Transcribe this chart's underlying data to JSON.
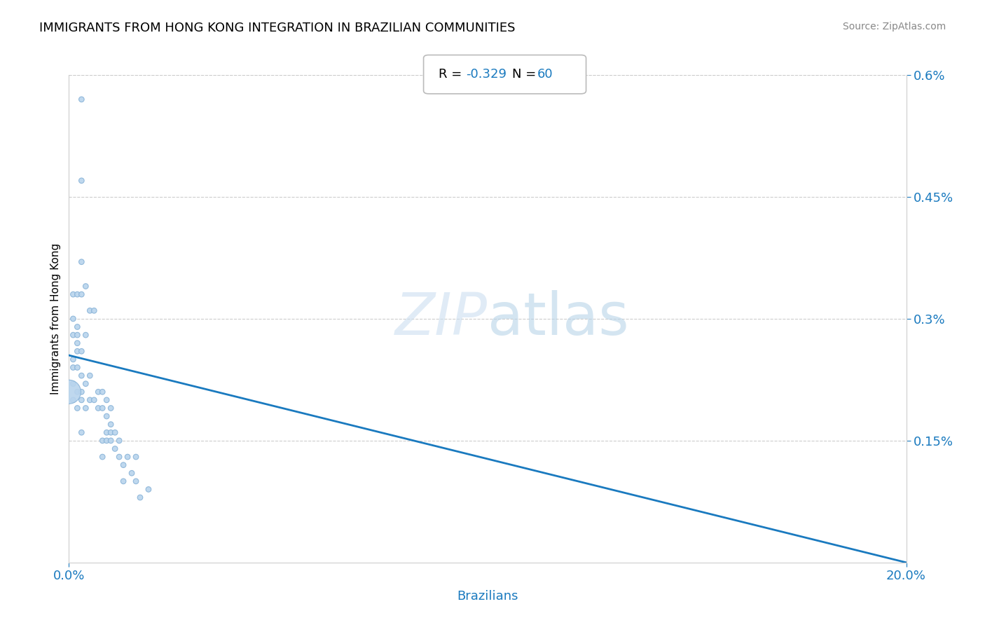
{
  "title": "IMMIGRANTS FROM HONG KONG INTEGRATION IN BRAZILIAN COMMUNITIES",
  "source": "Source: ZipAtlas.com",
  "xlabel": "Brazilians",
  "ylabel": "Immigrants from Hong Kong",
  "R": -0.329,
  "N": 60,
  "x_min": 0.0,
  "x_max": 0.2,
  "y_min": 0.0,
  "y_max": 0.006,
  "x_ticks": [
    0.0,
    0.2
  ],
  "x_tick_labels": [
    "0.0%",
    "20.0%"
  ],
  "y_ticks": [
    0.0015,
    0.003,
    0.0045,
    0.006
  ],
  "y_tick_labels": [
    "0.15%",
    "0.3%",
    "0.45%",
    "0.6%"
  ],
  "scatter_color": "#b8d4ed",
  "scatter_edge_color": "#8ab4d8",
  "line_color": "#1a7abf",
  "background_color": "#ffffff",
  "points": [
    [
      0.003,
      0.0057
    ],
    [
      0.003,
      0.0047
    ],
    [
      0.003,
      0.0037
    ],
    [
      0.001,
      0.0033
    ],
    [
      0.002,
      0.0033
    ],
    [
      0.003,
      0.0033
    ],
    [
      0.004,
      0.0034
    ],
    [
      0.005,
      0.0031
    ],
    [
      0.006,
      0.0031
    ],
    [
      0.001,
      0.003
    ],
    [
      0.002,
      0.0029
    ],
    [
      0.001,
      0.0028
    ],
    [
      0.002,
      0.0028
    ],
    [
      0.002,
      0.0027
    ],
    [
      0.004,
      0.0028
    ],
    [
      0.002,
      0.0026
    ],
    [
      0.003,
      0.0026
    ],
    [
      0.001,
      0.0025
    ],
    [
      0.001,
      0.0024
    ],
    [
      0.002,
      0.0024
    ],
    [
      0.003,
      0.0023
    ],
    [
      0.005,
      0.0023
    ],
    [
      0.004,
      0.0022
    ],
    [
      0.001,
      0.0022
    ],
    [
      0.002,
      0.0021
    ],
    [
      0.003,
      0.0021
    ],
    [
      0.007,
      0.0021
    ],
    [
      0.008,
      0.0021
    ],
    [
      0.001,
      0.002
    ],
    [
      0.003,
      0.002
    ],
    [
      0.005,
      0.002
    ],
    [
      0.006,
      0.002
    ],
    [
      0.009,
      0.002
    ],
    [
      0.002,
      0.0019
    ],
    [
      0.004,
      0.0019
    ],
    [
      0.007,
      0.0019
    ],
    [
      0.008,
      0.0019
    ],
    [
      0.01,
      0.0019
    ],
    [
      0.009,
      0.0018
    ],
    [
      0.01,
      0.0017
    ],
    [
      0.003,
      0.0016
    ],
    [
      0.009,
      0.0016
    ],
    [
      0.01,
      0.0016
    ],
    [
      0.011,
      0.0016
    ],
    [
      0.008,
      0.0015
    ],
    [
      0.009,
      0.0015
    ],
    [
      0.01,
      0.0015
    ],
    [
      0.012,
      0.0015
    ],
    [
      0.011,
      0.0014
    ],
    [
      0.008,
      0.0013
    ],
    [
      0.012,
      0.0013
    ],
    [
      0.014,
      0.0013
    ],
    [
      0.013,
      0.0012
    ],
    [
      0.013,
      0.001
    ],
    [
      0.015,
      0.0011
    ],
    [
      0.016,
      0.001
    ],
    [
      0.017,
      0.0008
    ],
    [
      0.019,
      0.0009
    ],
    [
      0.016,
      0.0013
    ],
    [
      0.0,
      0.0021
    ]
  ],
  "sizes": [
    30,
    30,
    30,
    30,
    30,
    30,
    30,
    30,
    30,
    30,
    30,
    30,
    30,
    30,
    30,
    30,
    30,
    30,
    30,
    30,
    30,
    30,
    30,
    30,
    30,
    30,
    30,
    30,
    30,
    30,
    30,
    30,
    30,
    30,
    30,
    30,
    30,
    30,
    30,
    30,
    30,
    30,
    30,
    30,
    30,
    30,
    30,
    30,
    30,
    30,
    30,
    30,
    30,
    30,
    30,
    30,
    30,
    30,
    30,
    600
  ],
  "line_y_start": 0.00255,
  "line_y_end": 0.0
}
